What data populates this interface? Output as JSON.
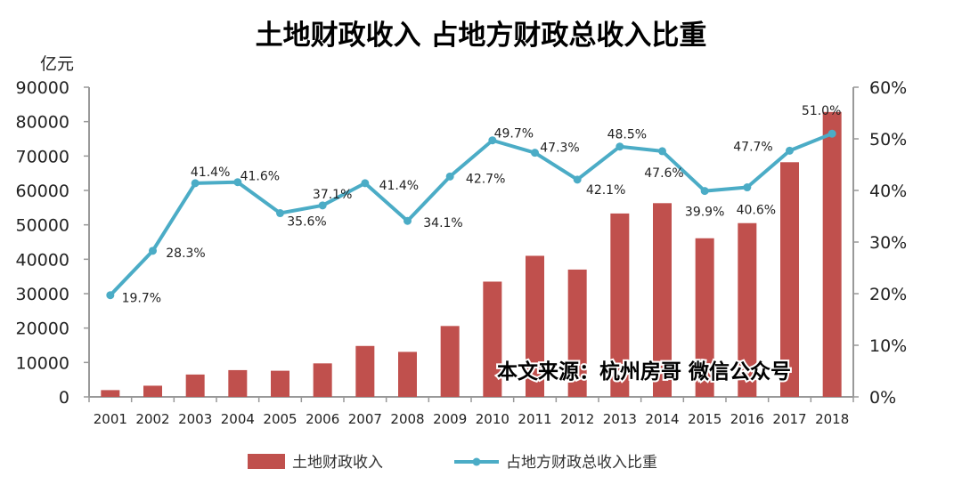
{
  "chart_data": {
    "type": "bar+line",
    "title": "土地财政收入 占地方财政总收入比重",
    "ylabel": "亿元",
    "categories": [
      "2001",
      "2002",
      "2003",
      "2004",
      "2005",
      "2006",
      "2007",
      "2008",
      "2009",
      "2010",
      "2011",
      "2012",
      "2013",
      "2014",
      "2015",
      "2016",
      "2017",
      "2018"
    ],
    "ylim": [
      0,
      90000
    ],
    "yticks": [
      "0",
      "10000",
      "20000",
      "30000",
      "40000",
      "50000",
      "60000",
      "70000",
      "80000",
      "90000"
    ],
    "y2lim": [
      0,
      60
    ],
    "y2ticks": [
      "0%",
      "10%",
      "20%",
      "30%",
      "40%",
      "50%",
      "60%"
    ],
    "series": [
      {
        "name": "土地财政收入",
        "type": "bar",
        "axis": "left",
        "color": "#c0504d",
        "values": [
          1970,
          3250,
          6500,
          7780,
          7600,
          9740,
          14800,
          13080,
          20600,
          33500,
          41000,
          37000,
          53300,
          56300,
          46100,
          50500,
          68200,
          82800
        ]
      },
      {
        "name": "占地方财政总收入比重",
        "type": "line",
        "axis": "right",
        "color": "#4bacc6",
        "values": [
          19.7,
          28.3,
          41.4,
          41.6,
          35.6,
          37.1,
          41.4,
          34.1,
          42.7,
          49.7,
          47.3,
          42.1,
          48.5,
          47.6,
          39.9,
          40.6,
          47.7,
          51.0
        ],
        "labels": [
          "19.7%",
          "28.3%",
          "41.4%",
          "41.6%",
          "35.6%",
          "37.1%",
          "41.4%",
          "34.1%",
          "42.7%",
          "49.7%",
          "47.3%",
          "42.1%",
          "48.5%",
          "47.6%",
          "39.9%",
          "40.6%",
          "47.7%",
          "51.0%"
        ]
      }
    ],
    "legend_position": "bottom",
    "grid": false,
    "watermark": "本文来源：杭州房哥 微信公众号"
  }
}
